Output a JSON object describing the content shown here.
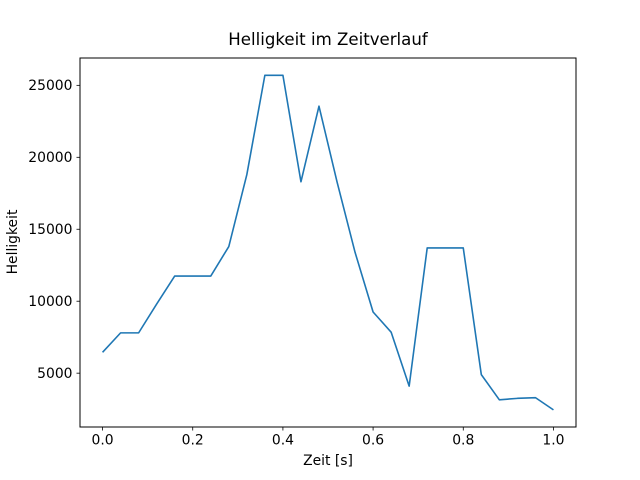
{
  "chart_data": {
    "type": "line",
    "title": "Helligkeit im Zeitverlauf",
    "xlabel": "Zeit [s]",
    "ylabel": "Helligkeit",
    "x": [
      0.0,
      0.04,
      0.08,
      0.12,
      0.16,
      0.2,
      0.24,
      0.28,
      0.32,
      0.36,
      0.4,
      0.44,
      0.48,
      0.52,
      0.56,
      0.6,
      0.64,
      0.68,
      0.72,
      0.76,
      0.8,
      0.84,
      0.88,
      0.92,
      0.96,
      1.0
    ],
    "y": [
      6450,
      7800,
      7800,
      9800,
      11750,
      11750,
      11750,
      13800,
      18800,
      25700,
      25700,
      18300,
      23550,
      18300,
      13400,
      9250,
      7850,
      4100,
      13700,
      13700,
      13700,
      4900,
      3150,
      3250,
      3300,
      2450
    ],
    "xlim": [
      -0.05,
      1.05
    ],
    "ylim": [
      1260,
      26900
    ],
    "xticks": {
      "values": [
        0.0,
        0.2,
        0.4,
        0.6,
        0.8,
        1.0
      ],
      "labels": [
        "0.0",
        "0.2",
        "0.4",
        "0.6",
        "0.8",
        "1.0"
      ]
    },
    "yticks": {
      "values": [
        5000,
        10000,
        15000,
        20000,
        25000
      ],
      "labels": [
        "5000",
        "10000",
        "15000",
        "20000",
        "25000"
      ]
    },
    "grid": false,
    "legend": "none",
    "line_color": "#1f77b4",
    "spine_color": "#000000",
    "text_color": "#000000",
    "background_color": "#ffffff"
  }
}
